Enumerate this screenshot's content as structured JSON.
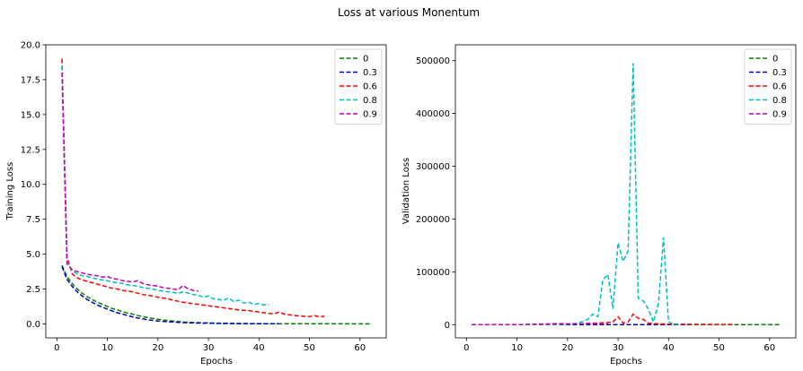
{
  "figure": {
    "suptitle": "Loss at various Monentum"
  },
  "chart_data": [
    {
      "type": "line",
      "title": "",
      "xlabel": "Epochs",
      "ylabel": "Training Loss",
      "xlim": [
        -2.2,
        65.2
      ],
      "ylim": [
        -1.0,
        20.0
      ],
      "xticks": [
        0,
        10,
        20,
        30,
        40,
        50,
        60
      ],
      "yticks": [
        0.0,
        2.5,
        5.0,
        7.5,
        10.0,
        12.5,
        15.0,
        17.5,
        20.0
      ],
      "ytick_labels": [
        "0.0",
        "2.5",
        "5.0",
        "7.5",
        "10.0",
        "12.5",
        "15.0",
        "17.5",
        "20.0"
      ],
      "grid": false,
      "legend": "top-right",
      "line_style": "dashed",
      "series": [
        {
          "name": "0",
          "color": "#008000",
          "x": [
            1,
            2,
            3,
            4,
            5,
            6,
            7,
            8,
            9,
            10,
            11,
            12,
            13,
            14,
            15,
            16,
            17,
            18,
            19,
            20,
            21,
            22,
            23,
            24,
            25,
            26,
            27,
            28,
            29,
            30,
            31,
            32,
            33,
            34,
            35,
            36,
            37,
            38,
            39,
            40,
            41,
            42,
            43,
            44,
            45,
            46,
            47,
            48,
            49,
            50,
            51,
            52,
            53,
            54,
            55,
            56,
            57,
            58,
            59,
            60,
            61,
            62
          ],
          "y": [
            4.2,
            3.4,
            2.9,
            2.5,
            2.2,
            1.95,
            1.75,
            1.55,
            1.4,
            1.25,
            1.1,
            1.0,
            0.88,
            0.78,
            0.7,
            0.6,
            0.52,
            0.45,
            0.39,
            0.33,
            0.28,
            0.24,
            0.2,
            0.17,
            0.14,
            0.12,
            0.1,
            0.09,
            0.08,
            0.07,
            0.06,
            0.05,
            0.045,
            0.04,
            0.035,
            0.03,
            0.027,
            0.024,
            0.021,
            0.019,
            0.017,
            0.015,
            0.014,
            0.013,
            0.012,
            0.011,
            0.01,
            0.01,
            0.009,
            0.009,
            0.008,
            0.008,
            0.007,
            0.007,
            0.006,
            0.006,
            0.006,
            0.005,
            0.005,
            0.005,
            0.005,
            0.005
          ]
        },
        {
          "name": "0.3",
          "color": "#0000bf",
          "x": [
            1,
            2,
            3,
            4,
            5,
            6,
            7,
            8,
            9,
            10,
            11,
            12,
            13,
            14,
            15,
            16,
            17,
            18,
            19,
            20,
            21,
            22,
            23,
            24,
            25,
            26,
            27,
            28,
            29,
            30,
            31,
            32,
            33,
            34,
            35,
            36,
            37,
            38,
            39,
            40,
            41,
            42,
            43,
            44
          ],
          "y": [
            4.1,
            3.2,
            2.7,
            2.3,
            2.0,
            1.75,
            1.55,
            1.35,
            1.2,
            1.05,
            0.92,
            0.8,
            0.7,
            0.6,
            0.5,
            0.42,
            0.36,
            0.3,
            0.25,
            0.21,
            0.18,
            0.15,
            0.13,
            0.11,
            0.09,
            0.08,
            0.07,
            0.06,
            0.05,
            0.045,
            0.04,
            0.035,
            0.03,
            0.027,
            0.024,
            0.021,
            0.019,
            0.017,
            0.015,
            0.014,
            0.013,
            0.012,
            0.011,
            0.01
          ]
        },
        {
          "name": "0.6",
          "color": "#ff0000",
          "x": [
            1,
            2,
            3,
            4,
            5,
            6,
            7,
            8,
            9,
            10,
            11,
            12,
            13,
            14,
            15,
            16,
            17,
            18,
            19,
            20,
            21,
            22,
            23,
            24,
            25,
            26,
            27,
            28,
            29,
            30,
            31,
            32,
            33,
            34,
            35,
            36,
            37,
            38,
            39,
            40,
            41,
            42,
            43,
            44,
            45,
            46,
            47,
            48,
            49,
            50,
            51,
            52,
            53
          ],
          "y": [
            19.0,
            4.8,
            3.6,
            3.3,
            3.15,
            3.05,
            2.95,
            2.85,
            2.75,
            2.65,
            2.55,
            2.5,
            2.4,
            2.35,
            2.3,
            2.2,
            2.1,
            2.05,
            2.0,
            1.9,
            1.85,
            1.8,
            1.7,
            1.62,
            1.55,
            1.5,
            1.45,
            1.4,
            1.35,
            1.3,
            1.25,
            1.2,
            1.15,
            1.1,
            1.05,
            1.0,
            0.98,
            0.95,
            0.9,
            0.85,
            0.8,
            0.75,
            0.72,
            0.85,
            0.7,
            0.65,
            0.6,
            0.58,
            0.55,
            0.52,
            0.6,
            0.5,
            0.55
          ]
        },
        {
          "name": "0.8",
          "color": "#00bfbf",
          "x": [
            1,
            2,
            3,
            4,
            5,
            6,
            7,
            8,
            9,
            10,
            11,
            12,
            13,
            14,
            15,
            16,
            17,
            18,
            19,
            20,
            21,
            22,
            23,
            24,
            25,
            26,
            27,
            28,
            29,
            30,
            31,
            32,
            33,
            34,
            35,
            36,
            37,
            38,
            39,
            40,
            41,
            42
          ],
          "y": [
            18.5,
            4.5,
            3.8,
            3.6,
            3.45,
            3.4,
            3.3,
            3.2,
            3.15,
            3.1,
            3.0,
            2.95,
            2.9,
            2.8,
            2.75,
            2.7,
            2.6,
            2.55,
            2.5,
            2.4,
            2.35,
            2.3,
            2.25,
            2.2,
            2.3,
            2.2,
            2.1,
            2.05,
            1.9,
            2.0,
            1.8,
            1.75,
            1.7,
            1.85,
            1.6,
            1.7,
            1.5,
            1.55,
            1.4,
            1.45,
            1.35,
            1.4
          ]
        },
        {
          "name": "0.9",
          "color": "#bf00bf",
          "x": [
            1,
            2,
            3,
            4,
            5,
            6,
            7,
            8,
            9,
            10,
            11,
            12,
            13,
            14,
            15,
            16,
            17,
            18,
            19,
            20,
            21,
            22,
            23,
            24,
            25,
            26,
            27,
            28
          ],
          "y": [
            18.0,
            4.3,
            3.9,
            3.75,
            3.65,
            3.55,
            3.5,
            3.45,
            3.35,
            3.4,
            3.25,
            3.2,
            3.1,
            3.05,
            3.0,
            3.1,
            2.9,
            2.8,
            2.75,
            2.7,
            2.6,
            2.55,
            2.5,
            2.45,
            2.75,
            2.5,
            2.4,
            2.35
          ]
        }
      ]
    },
    {
      "type": "line",
      "title": "",
      "xlabel": "Epochs",
      "ylabel": "Validation Loss",
      "xlim": [
        -2.2,
        65.2
      ],
      "ylim": [
        -25000,
        530000
      ],
      "xticks": [
        0,
        10,
        20,
        30,
        40,
        50,
        60
      ],
      "yticks": [
        0,
        100000,
        200000,
        300000,
        400000,
        500000
      ],
      "ytick_labels": [
        "0",
        "100000",
        "200000",
        "300000",
        "400000",
        "500000"
      ],
      "grid": false,
      "legend": "top-right",
      "line_style": "dashed",
      "series": [
        {
          "name": "0",
          "color": "#008000",
          "x": [
            1,
            10,
            20,
            30,
            40,
            50,
            62
          ],
          "y": [
            0,
            0,
            0,
            0,
            0,
            0,
            0
          ]
        },
        {
          "name": "0.3",
          "color": "#0000bf",
          "x": [
            1,
            10,
            20,
            30,
            40,
            44
          ],
          "y": [
            0,
            0,
            0,
            0,
            0,
            0
          ]
        },
        {
          "name": "0.6",
          "color": "#ff0000",
          "x": [
            1,
            10,
            18,
            19,
            20,
            22,
            24,
            26,
            28,
            29,
            30,
            31,
            32,
            33,
            34,
            35,
            36,
            37,
            38,
            40,
            42,
            45,
            50,
            53
          ],
          "y": [
            0,
            0,
            0,
            2000,
            1000,
            1500,
            2000,
            3000,
            4000,
            5000,
            15000,
            3000,
            5000,
            20000,
            12000,
            10000,
            3000,
            2000,
            1500,
            1000,
            800,
            500,
            300,
            200
          ]
        },
        {
          "name": "0.8",
          "color": "#00bfbf",
          "x": [
            1,
            10,
            20,
            22,
            23,
            24,
            25,
            26,
            27,
            28,
            29,
            30,
            31,
            32,
            33,
            34,
            35,
            36,
            37,
            38,
            39,
            40,
            41,
            42
          ],
          "y": [
            0,
            0,
            1000,
            3000,
            6000,
            10000,
            20000,
            15000,
            85000,
            95000,
            30000,
            155000,
            120000,
            140000,
            495000,
            50000,
            45000,
            30000,
            5000,
            40000,
            165000,
            5000,
            1000,
            500
          ]
        },
        {
          "name": "0.9",
          "color": "#bf00bf",
          "x": [
            1,
            10,
            18,
            20,
            22,
            24,
            26,
            28
          ],
          "y": [
            0,
            0,
            2000,
            1500,
            1000,
            2500,
            1500,
            2000
          ]
        }
      ]
    }
  ]
}
